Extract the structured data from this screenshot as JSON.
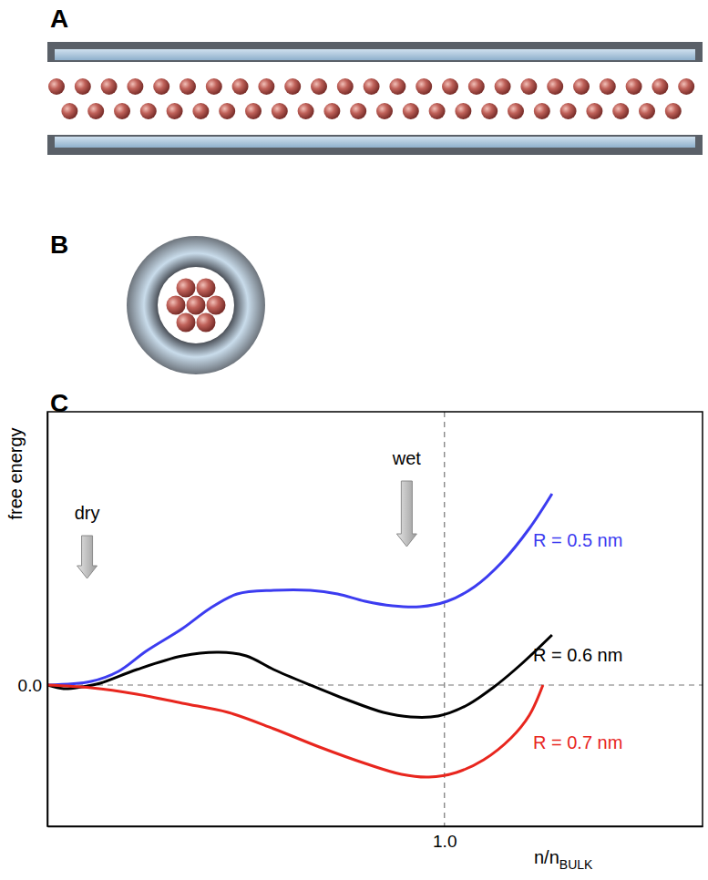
{
  "panel_labels": [
    "A",
    "B",
    "C"
  ],
  "chart_data": {
    "type": "line",
    "ylabel": "free energy",
    "xlabel": "n/n",
    "xlabel_sub": "BULK",
    "xlim": [
      0,
      1.65
    ],
    "ylim": [
      -1.55,
      3.0
    ],
    "xticks": [
      {
        "value": 1,
        "label": "1.0"
      }
    ],
    "yticks": [
      {
        "value": 0,
        "label": "0.0"
      }
    ],
    "grid": true,
    "tick_labels": true,
    "annotations": [
      {
        "text": "dry",
        "x": 0.1
      },
      {
        "text": "wet",
        "x": 0.905
      }
    ],
    "series": [
      {
        "name": "R = 0.5 nm",
        "color": "#3c3cf0",
        "x": [
          0,
          0.11,
          0.179,
          0.248,
          0.34,
          0.409,
          0.478,
          0.57,
          0.662,
          0.731,
          0.8,
          0.869,
          0.938,
          1.007,
          1.076,
          1.145,
          1.214,
          1.271
        ],
        "values": [
          0,
          0.04,
          0.15,
          0.37,
          0.62,
          0.84,
          1.0,
          1.04,
          1.04,
          1.0,
          0.92,
          0.87,
          0.86,
          0.92,
          1.08,
          1.35,
          1.72,
          2.1
        ]
      },
      {
        "name": "R = 0.6 nm",
        "color": "#000000",
        "x": [
          0,
          0.041,
          0.087,
          0.133,
          0.225,
          0.34,
          0.432,
          0.501,
          0.57,
          0.662,
          0.754,
          0.846,
          0.915,
          0.984,
          1.053,
          1.122,
          1.191,
          1.271
        ],
        "values": [
          0,
          -0.04,
          -0.02,
          0.02,
          0.17,
          0.32,
          0.36,
          0.32,
          0.17,
          0,
          -0.16,
          -0.3,
          -0.35,
          -0.34,
          -0.23,
          -0.03,
          0.22,
          0.55
        ]
      },
      {
        "name": "R = 0.7 nm",
        "color": "#e8261e",
        "x": [
          0,
          0.11,
          0.225,
          0.34,
          0.455,
          0.57,
          0.685,
          0.8,
          0.892,
          0.961,
          1.03,
          1.099,
          1.168,
          1.214,
          1.248
        ],
        "values": [
          0,
          -0.03,
          -0.1,
          -0.2,
          -0.3,
          -0.48,
          -0.68,
          -0.86,
          -0.98,
          -1.01,
          -0.96,
          -0.82,
          -0.58,
          -0.33,
          0
        ]
      }
    ]
  }
}
